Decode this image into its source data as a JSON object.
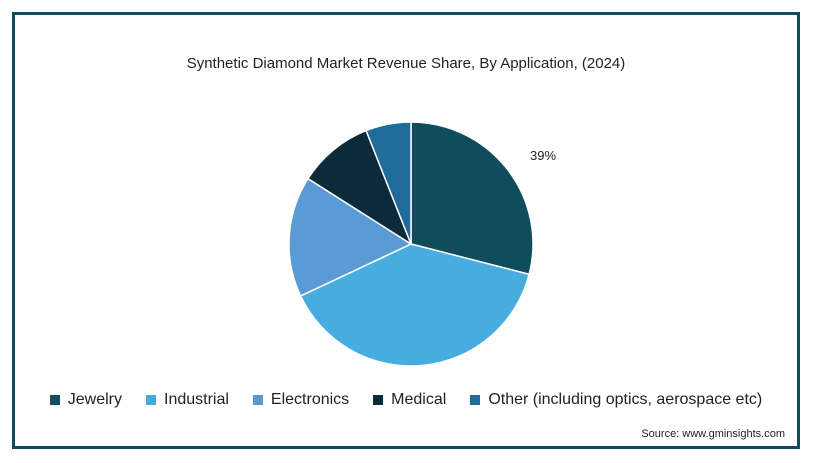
{
  "chart_data": {
    "type": "pie",
    "title": "Synthetic Diamond Market Revenue Share, By Application,  (2024)",
    "categories": [
      "Jewelry",
      "Industrial",
      "Electronics",
      "Medical",
      "Other (including optics, aerospace etc)"
    ],
    "values": [
      29,
      39,
      16,
      10,
      6
    ],
    "colors": [
      "#0f4c5c",
      "#47ade0",
      "#5b9bd5",
      "#0b2a3a",
      "#1f6b99"
    ],
    "data_labels": [
      {
        "category": "Industrial",
        "text": "39%"
      }
    ],
    "legend_position": "bottom"
  },
  "source": "Source: www.gminsights.com"
}
